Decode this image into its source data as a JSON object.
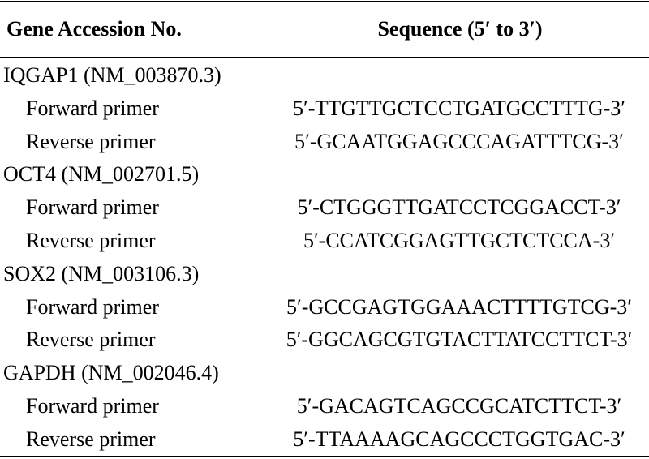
{
  "table": {
    "header": [
      "Gene Accession No.",
      "Sequence (5′ to 3′)"
    ],
    "groups": [
      {
        "gene": "IQGAP1 (NM_003870.3)",
        "rows": [
          [
            "Forward primer",
            "5′-TTGTTGCTCCTGATGCCTTTG-3′"
          ],
          [
            "Reverse primer",
            "5′-GCAATGGAGCCCAGATTTCG-3′"
          ]
        ]
      },
      {
        "gene": "OCT4 (NM_002701.5)",
        "rows": [
          [
            "Forward primer",
            "5′-CTGGGTTGATCCTCGGACCT-3′"
          ],
          [
            "Reverse primer",
            "5′-CCATCGGAGTTGCTCTCCA-3′"
          ]
        ]
      },
      {
        "gene": "SOX2 (NM_003106.3)",
        "rows": [
          [
            "Forward primer",
            "5′-GCCGAGTGGAAACTTTTGTCG-3′"
          ],
          [
            "Reverse primer",
            "5′-GGCAGCGTGTACTTATCCTTCT-3′"
          ]
        ]
      },
      {
        "gene": "GAPDH (NM_002046.4)",
        "rows": [
          [
            "Forward primer",
            "5′-GACAGTCAGCCGCATCTTCT-3′"
          ],
          [
            "Reverse primer",
            "5′-TTAAAAGCAGCCCTGGTGAC-3′"
          ]
        ]
      }
    ]
  }
}
